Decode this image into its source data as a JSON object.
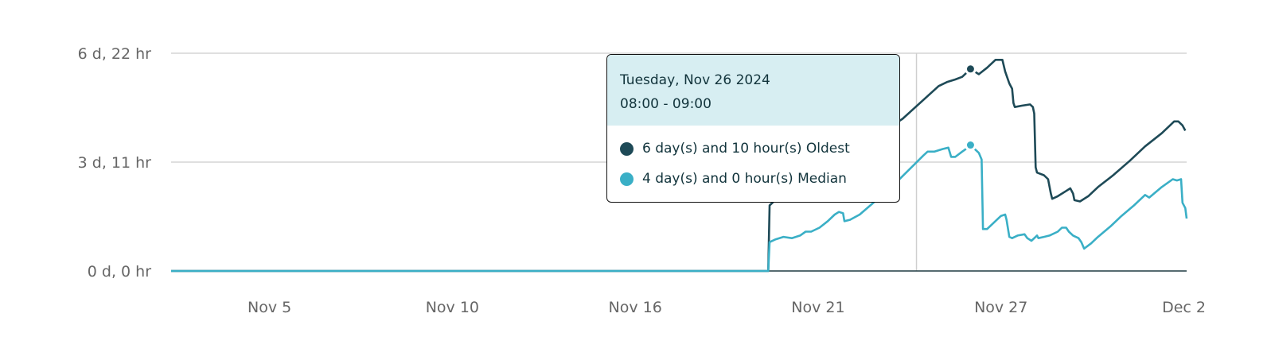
{
  "chart_data": {
    "type": "line",
    "title": "",
    "xlabel": "",
    "ylabel": "",
    "x_domain": [
      "2024-11-02T07:00",
      "2024-12-02T20:00"
    ],
    "ylim_hours": [
      0,
      166
    ],
    "y_ticks": [
      {
        "value_hours": 0,
        "label": "0 d, 0 hr"
      },
      {
        "value_hours": 83,
        "label": "3 d, 11 hr"
      },
      {
        "value_hours": 166,
        "label": "6 d, 22 hr"
      }
    ],
    "x_ticks": [
      {
        "date": "2024-11-05T06:00",
        "label": "Nov 5"
      },
      {
        "date": "2024-11-10T18:00",
        "label": "Nov 10"
      },
      {
        "date": "2024-11-16T06:00",
        "label": "Nov 16"
      },
      {
        "date": "2024-11-21T18:00",
        "label": "Nov 21"
      },
      {
        "date": "2024-11-27T06:00",
        "label": "Nov 27"
      },
      {
        "date": "2024-12-02T18:00",
        "label": "Dec 2"
      }
    ],
    "grid": "horizontal",
    "reference_line_date": "2024-11-24T17:00",
    "series": [
      {
        "name": "Oldest",
        "color": "#1e4a57",
        "points": [
          [
            "2024-11-02T07:00",
            0
          ],
          [
            "2024-11-20T06:00",
            0
          ],
          [
            "2024-11-20T07:00",
            50
          ],
          [
            "2024-11-20T11:00",
            54
          ],
          [
            "2024-11-21T12:00",
            70
          ],
          [
            "2024-11-24T07:00",
            116
          ],
          [
            "2024-11-25T09:00",
            141
          ],
          [
            "2024-11-25T15:00",
            144
          ],
          [
            "2024-11-25T21:00",
            146
          ],
          [
            "2024-11-26T02:00",
            148
          ],
          [
            "2024-11-26T06:00",
            152
          ],
          [
            "2024-11-26T08:00",
            154
          ],
          [
            "2024-11-26T14:00",
            150
          ],
          [
            "2024-11-26T20:00",
            155
          ],
          [
            "2024-11-27T02:00",
            161
          ],
          [
            "2024-11-27T07:00",
            161
          ],
          [
            "2024-11-27T09:00",
            152
          ],
          [
            "2024-11-27T12:00",
            143
          ],
          [
            "2024-11-27T14:00",
            139
          ],
          [
            "2024-11-27T15:00",
            128
          ],
          [
            "2024-11-27T16:00",
            125
          ],
          [
            "2024-11-27T21:00",
            126
          ],
          [
            "2024-11-28T03:00",
            127
          ],
          [
            "2024-11-28T05:00",
            125
          ],
          [
            "2024-11-28T06:00",
            120
          ],
          [
            "2024-11-28T07:00",
            79
          ],
          [
            "2024-11-28T08:00",
            75
          ],
          [
            "2024-11-28T13:00",
            73
          ],
          [
            "2024-11-28T16:00",
            70
          ],
          [
            "2024-11-28T18:00",
            59
          ],
          [
            "2024-11-28T19:00",
            55
          ],
          [
            "2024-11-28T23:00",
            57
          ],
          [
            "2024-11-29T05:00",
            61
          ],
          [
            "2024-11-29T08:00",
            63
          ],
          [
            "2024-11-29T10:00",
            59
          ],
          [
            "2024-11-29T11:00",
            54
          ],
          [
            "2024-11-29T15:00",
            53
          ],
          [
            "2024-11-29T21:00",
            57
          ],
          [
            "2024-11-30T04:00",
            64
          ],
          [
            "2024-11-30T15:00",
            73
          ],
          [
            "2024-12-01T03:00",
            84
          ],
          [
            "2024-12-01T14:00",
            95
          ],
          [
            "2024-12-02T02:00",
            105
          ],
          [
            "2024-12-02T08:00",
            111
          ],
          [
            "2024-12-02T11:00",
            114
          ],
          [
            "2024-12-02T14:00",
            114
          ],
          [
            "2024-12-02T17:00",
            111
          ],
          [
            "2024-12-02T19:00",
            107
          ]
        ]
      },
      {
        "name": "Median",
        "color": "#3aafc6",
        "points": [
          [
            "2024-11-02T07:00",
            0
          ],
          [
            "2024-11-20T06:00",
            0
          ],
          [
            "2024-11-20T07:00",
            22
          ],
          [
            "2024-11-20T11:00",
            24
          ],
          [
            "2024-11-20T17:00",
            26
          ],
          [
            "2024-11-20T23:00",
            25
          ],
          [
            "2024-11-21T05:00",
            27
          ],
          [
            "2024-11-21T09:00",
            30
          ],
          [
            "2024-11-21T13:00",
            30
          ],
          [
            "2024-11-21T19:00",
            33
          ],
          [
            "2024-11-22T01:00",
            38
          ],
          [
            "2024-11-22T06:00",
            43
          ],
          [
            "2024-11-22T09:00",
            45
          ],
          [
            "2024-11-22T12:00",
            44
          ],
          [
            "2024-11-22T13:00",
            38
          ],
          [
            "2024-11-22T17:00",
            39
          ],
          [
            "2024-11-23T00:00",
            43
          ],
          [
            "2024-11-23T11:00",
            53
          ],
          [
            "2024-11-23T23:00",
            64
          ],
          [
            "2024-11-24T22:00",
            88
          ],
          [
            "2024-11-25T01:00",
            91
          ],
          [
            "2024-11-25T06:00",
            91
          ],
          [
            "2024-11-25T12:00",
            93
          ],
          [
            "2024-11-25T16:00",
            94
          ],
          [
            "2024-11-25T18:00",
            87
          ],
          [
            "2024-11-25T21:00",
            87
          ],
          [
            "2024-11-26T02:00",
            91
          ],
          [
            "2024-11-26T06:00",
            94
          ],
          [
            "2024-11-26T08:00",
            96
          ],
          [
            "2024-11-26T14:00",
            90
          ],
          [
            "2024-11-26T16:00",
            85
          ],
          [
            "2024-11-26T17:00",
            32
          ],
          [
            "2024-11-26T20:00",
            32
          ],
          [
            "2024-11-27T01:00",
            37
          ],
          [
            "2024-11-27T06:00",
            42
          ],
          [
            "2024-11-27T09:00",
            43
          ],
          [
            "2024-11-27T10:00",
            39
          ],
          [
            "2024-11-27T12:00",
            26
          ],
          [
            "2024-11-27T14:00",
            25
          ],
          [
            "2024-11-27T18:00",
            27
          ],
          [
            "2024-11-27T23:00",
            28
          ],
          [
            "2024-11-28T01:00",
            25
          ],
          [
            "2024-11-28T04:00",
            23
          ],
          [
            "2024-11-28T08:00",
            27
          ],
          [
            "2024-11-28T09:00",
            25
          ],
          [
            "2024-11-28T13:00",
            26
          ],
          [
            "2024-11-28T17:00",
            27
          ],
          [
            "2024-11-28T23:00",
            30
          ],
          [
            "2024-11-29T02:00",
            33
          ],
          [
            "2024-11-29T05:00",
            33
          ],
          [
            "2024-11-29T07:00",
            30
          ],
          [
            "2024-11-29T10:00",
            27
          ],
          [
            "2024-11-29T12:00",
            26
          ],
          [
            "2024-11-29T14:00",
            25
          ],
          [
            "2024-11-29T16:00",
            22
          ],
          [
            "2024-11-29T18:00",
            17
          ],
          [
            "2024-11-29T23:00",
            21
          ],
          [
            "2024-11-30T04:00",
            26
          ],
          [
            "2024-11-30T13:00",
            34
          ],
          [
            "2024-11-30T21:00",
            42
          ],
          [
            "2024-12-01T06:00",
            50
          ],
          [
            "2024-12-01T14:00",
            58
          ],
          [
            "2024-12-01T17:00",
            56
          ],
          [
            "2024-12-02T02:00",
            64
          ],
          [
            "2024-12-02T10:00",
            70
          ],
          [
            "2024-12-02T13:00",
            69
          ],
          [
            "2024-12-02T16:00",
            70
          ],
          [
            "2024-12-02T17:00",
            52
          ],
          [
            "2024-12-02T19:00",
            48
          ],
          [
            "2024-12-02T20:00",
            40
          ]
        ]
      }
    ],
    "hover": {
      "date": "2024-11-26T08:00",
      "values_hours": [
        154,
        96
      ]
    }
  },
  "tooltip": {
    "date": "Tuesday, Nov 26 2024",
    "range": "08:00 - 09:00",
    "rows": [
      {
        "text": "6 day(s) and 10 hour(s) Oldest",
        "color": "#1e4a57"
      },
      {
        "text": "4 day(s) and 0 hour(s) Median",
        "color": "#3aafc6"
      }
    ]
  }
}
